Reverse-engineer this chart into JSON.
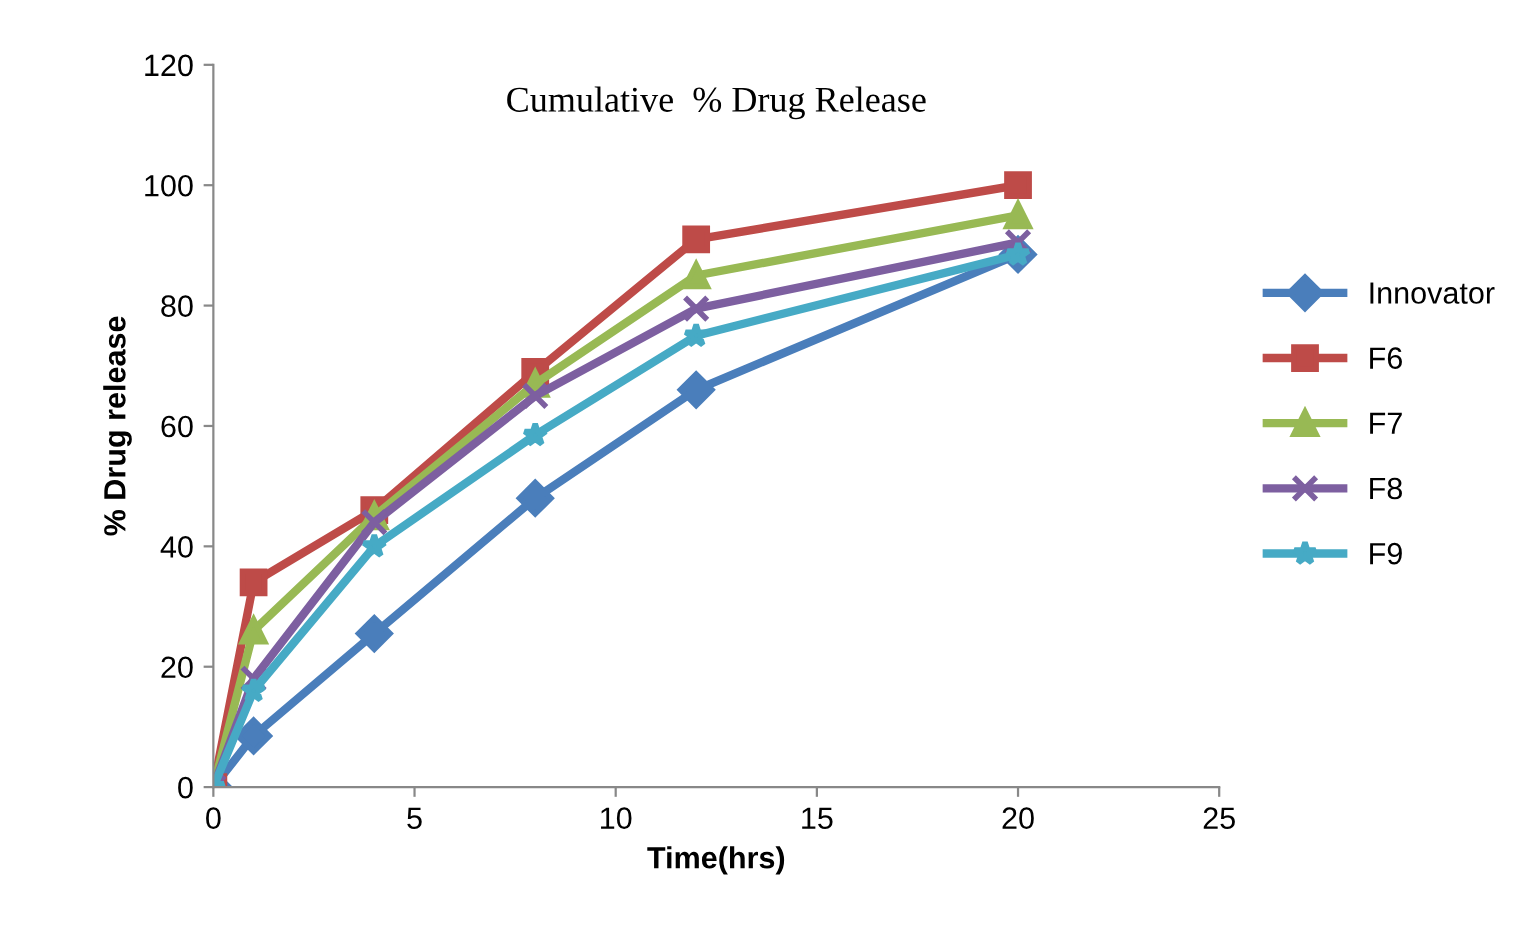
{
  "chart_data": {
    "type": "line",
    "title": "Cumulative  % Drug Release",
    "xlabel": "Time(hrs)",
    "ylabel": "% Drug release",
    "x": [
      0,
      1,
      4,
      8,
      12,
      20
    ],
    "series": [
      {
        "name": "Innovator",
        "color": "#4a7ebb",
        "marker": "diamond",
        "values": [
          0,
          8.5,
          25.5,
          48,
          66,
          88.5
        ]
      },
      {
        "name": "F6",
        "color": "#be4b48",
        "marker": "square",
        "values": [
          0,
          34,
          46,
          69,
          91,
          100
        ]
      },
      {
        "name": "F7",
        "color": "#98b954",
        "marker": "triangle",
        "values": [
          0,
          26,
          45,
          67,
          85,
          95
        ]
      },
      {
        "name": "F8",
        "color": "#7d5fa0",
        "marker": "cross",
        "values": [
          0,
          18,
          44,
          65,
          79.5,
          90.5
        ]
      },
      {
        "name": "F9",
        "color": "#46aac5",
        "marker": "star",
        "values": [
          0,
          16,
          40,
          58.5,
          75,
          88.5
        ]
      }
    ],
    "xlim": [
      0,
      25
    ],
    "xticks": [
      0,
      5,
      10,
      15,
      20,
      25
    ],
    "ylim": [
      0,
      120
    ],
    "yticks": [
      0,
      20,
      40,
      60,
      80,
      100,
      120
    ],
    "grid": false,
    "legend": "right",
    "line_style": "solid"
  }
}
